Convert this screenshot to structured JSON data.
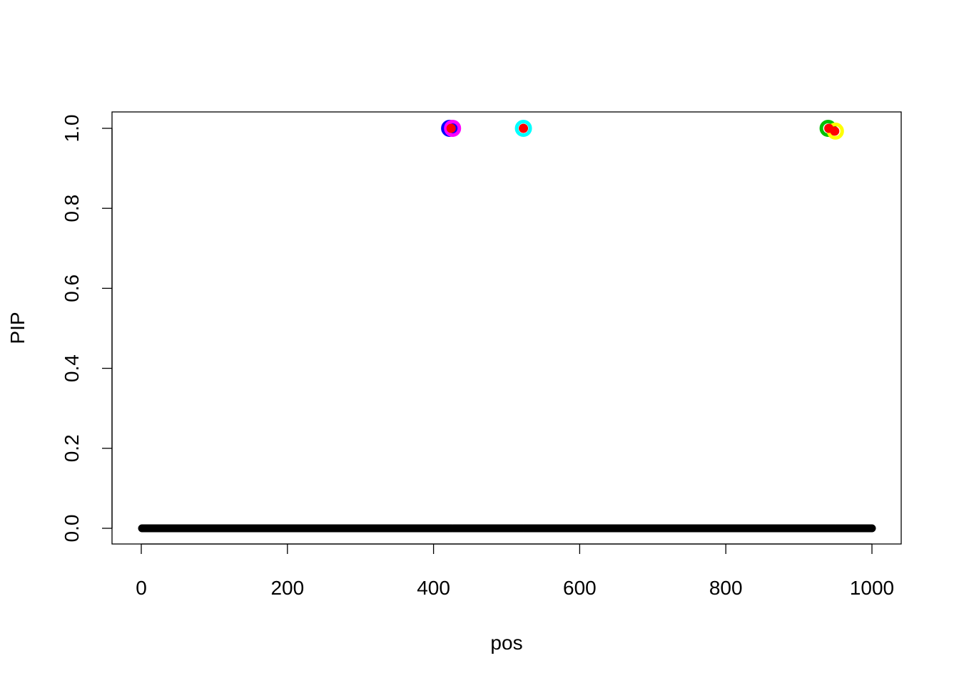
{
  "chart_data": {
    "type": "scatter",
    "title": "",
    "xlabel": "pos",
    "ylabel": "PIP",
    "xlim": [
      0,
      1000
    ],
    "ylim": [
      0,
      1
    ],
    "xticks": [
      "0",
      "200",
      "400",
      "600",
      "800",
      "1000"
    ],
    "yticks": [
      "0.0",
      "0.2",
      "0.4",
      "0.6",
      "0.8",
      "1.0"
    ],
    "grid": false,
    "baseline": {
      "x_from": 1,
      "x_to": 1000,
      "y": 0,
      "color": "#000000"
    },
    "highlighted": [
      {
        "x": 422,
        "y": 1.0,
        "ring_color": "#0000FF"
      },
      {
        "x": 426,
        "y": 1.0,
        "ring_color": "#FF00FF"
      },
      {
        "x": 523,
        "y": 1.0,
        "ring_color": "#00FFFF"
      },
      {
        "x": 940,
        "y": 1.0,
        "ring_color": "#00C000"
      },
      {
        "x": 950,
        "y": 0.993,
        "ring_color": "#FFFF00"
      }
    ],
    "true_effects": [
      {
        "x": 424,
        "y": 1.0
      },
      {
        "x": 523,
        "y": 1.0
      },
      {
        "x": 941,
        "y": 1.0
      },
      {
        "x": 949,
        "y": 0.993
      }
    ],
    "true_color": "#FF0000"
  }
}
